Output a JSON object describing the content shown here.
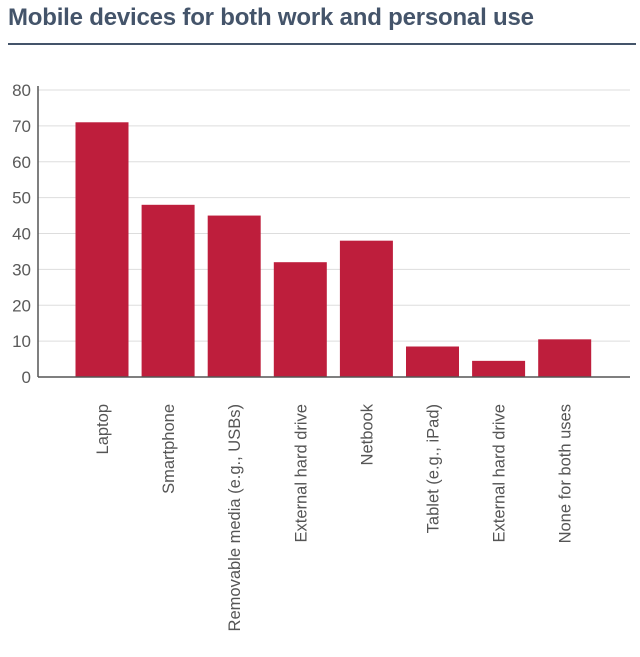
{
  "chart_data": {
    "type": "bar",
    "title": "Mobile devices for both work and personal use",
    "xlabel": "",
    "ylabel": "",
    "ylim": [
      0,
      80
    ],
    "yticks": [
      0,
      10,
      20,
      30,
      40,
      50,
      60,
      70,
      80
    ],
    "grid": true,
    "categories": [
      "Laptop",
      "Smartphone",
      "Removable media (e.g., USBs)",
      "External hard drive",
      "Netbook",
      "Tablet (e.g., iPad)",
      "External hard drive",
      "None for both uses"
    ],
    "values": [
      71,
      48,
      45,
      32,
      38,
      8.5,
      4.5,
      10.5
    ],
    "bar_color": "#be1e3c",
    "gridline_color": "#dddddd",
    "title_color": "#44546a"
  }
}
